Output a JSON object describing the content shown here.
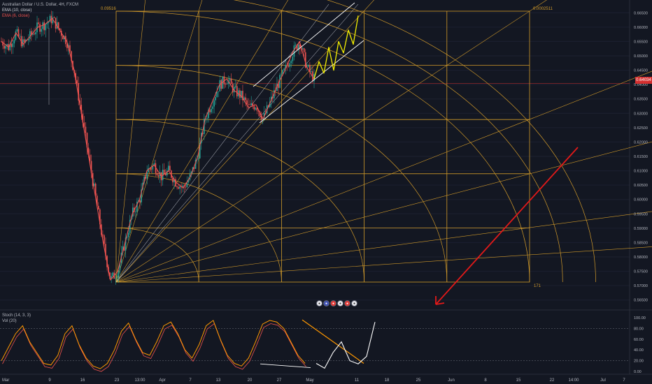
{
  "header": {
    "symbol_line": "Australian Dollar / U.S. Dollar, 4H, FXCM",
    "ema1": "EMA (10, close)",
    "ema2": "EMA (6, close)",
    "stoch": "Stoch (14, 3, 3)",
    "vol": "Vol (20)"
  },
  "gann": {
    "top_left_label": "0.09516",
    "top_right_label": "0.0002511",
    "bottom_right_label": "171"
  },
  "price_tag": "0.64034",
  "event_badges": [
    "●",
    "●",
    "●",
    "●",
    "●",
    "●"
  ],
  "colors": {
    "background": "#131722",
    "gann": "#d19a2a",
    "price_line": "#d32f2f",
    "channel": "#ffffff",
    "projection": "#f5f000",
    "arrow": "#e31919",
    "candle_up": "#26a69a",
    "candle_down": "#ef5350"
  },
  "chart_data": [
    {
      "type": "line",
      "title": "Australian Dollar / U.S. Dollar, 4H, FXCM",
      "x_ticks": [
        "Mar",
        "9",
        "16",
        "23",
        "13:00",
        "Apr",
        "7",
        "13",
        "20",
        "27",
        "May",
        "11",
        "18",
        "25",
        "Jun",
        "8",
        "15",
        "22",
        "14:00",
        "Jul",
        "7"
      ],
      "y_ticks": [
        "0.66500",
        "0.66000",
        "0.65500",
        "0.65000",
        "0.64500",
        "0.64000",
        "0.63500",
        "0.63000",
        "0.62500",
        "0.62000",
        "0.61500",
        "0.61000",
        "0.60500",
        "0.60000",
        "0.59500",
        "0.59000",
        "0.58500",
        "0.58000",
        "0.57500",
        "0.57000",
        "0.56500"
      ],
      "ylim": [
        0.5625,
        0.6675
      ],
      "current_price": 0.64034,
      "series": [
        {
          "name": "EMA (10, close)",
          "values": [
            0.655,
            0.653,
            0.658,
            0.654,
            0.657,
            0.66,
            0.661,
            0.663,
            0.659,
            0.655,
            0.645,
            0.63,
            0.615,
            0.6,
            0.585,
            0.572,
            0.575,
            0.585,
            0.595,
            0.6,
            0.61,
            0.612,
            0.608,
            0.61,
            0.606,
            0.604,
            0.608,
            0.615,
            0.628,
            0.634,
            0.64,
            0.642,
            0.638,
            0.636,
            0.632,
            0.633,
            0.628,
            0.634,
            0.64,
            0.645,
            0.651,
            0.655,
            0.646,
            0.642
          ]
        }
      ],
      "projection": [
        0.642,
        0.648,
        0.644,
        0.653,
        0.645,
        0.655,
        0.651,
        0.659,
        0.654,
        0.664
      ]
    },
    {
      "type": "line",
      "title": "Stoch (14, 3, 3)",
      "y_ticks": [
        "100.00",
        "80.00",
        "60.00",
        "40.00",
        "20.00",
        "0.00"
      ],
      "ylim": [
        0,
        100
      ],
      "series": [
        {
          "name": "Stoch (14, 3, 3)",
          "values": [
            20,
            45,
            70,
            85,
            55,
            35,
            15,
            12,
            30,
            70,
            85,
            50,
            25,
            10,
            5,
            15,
            40,
            75,
            90,
            60,
            35,
            30,
            55,
            85,
            92,
            70,
            40,
            25,
            50,
            85,
            95,
            60,
            30,
            15,
            10,
            25,
            55,
            88,
            95,
            92,
            80,
            55,
            30,
            15
          ]
        }
      ],
      "projection": [
        15,
        6,
        35,
        55,
        20,
        14,
        28,
        92
      ]
    }
  ]
}
